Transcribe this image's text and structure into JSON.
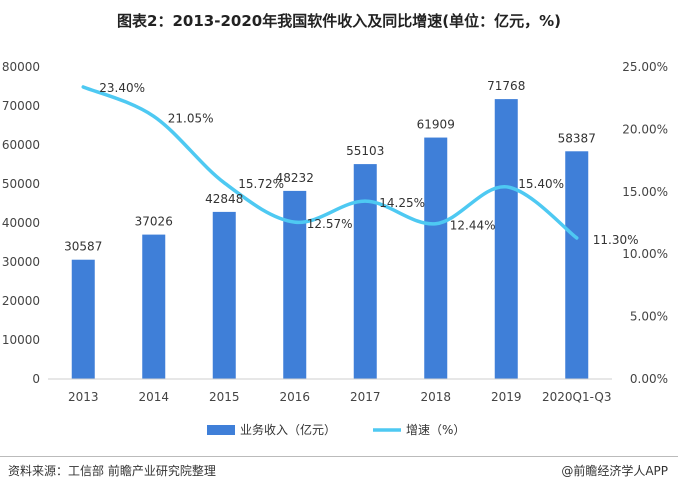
{
  "title": "图表2：2013-2020年我国软件收入及同比增速(单位：亿元，%)",
  "source": "资料来源：工信部 前瞻产业研究院整理",
  "brand": "@前瞻经济学人APP",
  "colors": {
    "bar": "#3f7fd8",
    "line": "#4ec9f2"
  },
  "chart_data": {
    "type": "bar",
    "categories": [
      "2013",
      "2014",
      "2015",
      "2016",
      "2017",
      "2018",
      "2019",
      "2020Q1-Q3"
    ],
    "series": [
      {
        "name": "业务收入（亿元）",
        "type": "bar",
        "axis": "left",
        "values": [
          30587,
          37026,
          42848,
          48232,
          55103,
          61909,
          71768,
          58387
        ],
        "labels": [
          "30587",
          "37026",
          "42848",
          "48232",
          "55103",
          "61909",
          "71768",
          "58387"
        ]
      },
      {
        "name": "增速（%）",
        "type": "line",
        "axis": "right",
        "values": [
          23.4,
          21.05,
          15.72,
          12.57,
          14.25,
          12.44,
          15.4,
          11.3
        ],
        "labels": [
          "23.40%",
          "21.05%",
          "15.72%",
          "12.57%",
          "14.25%",
          "12.44%",
          "15.40%",
          "11.30%"
        ]
      }
    ],
    "ylim_left": [
      0,
      80000
    ],
    "yticks_left": [
      "0",
      "10000",
      "20000",
      "30000",
      "40000",
      "50000",
      "60000",
      "70000",
      "80000"
    ],
    "ylim_right": [
      0,
      25
    ],
    "yticks_right": [
      "0.00%",
      "5.00%",
      "10.00%",
      "15.00%",
      "20.00%",
      "25.00%"
    ],
    "legend_position": "bottom"
  }
}
